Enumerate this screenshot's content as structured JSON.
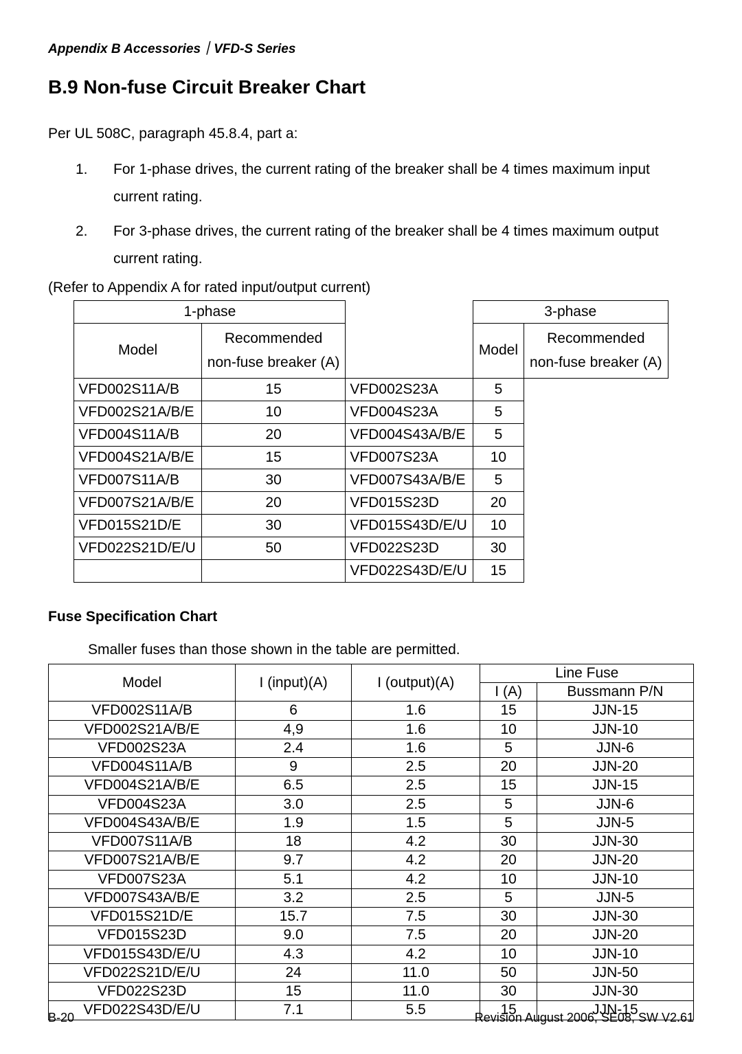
{
  "header": {
    "appendix": "Appendix B  Accessories｜VFD-S Series",
    "section_title": "B.9 Non-fuse Circuit Breaker Chart"
  },
  "intro": {
    "lead": "Per UL 508C, paragraph 45.8.4, part a:",
    "items": [
      {
        "n": "1.",
        "text": "For 1-phase drives, the current rating of the breaker shall be 4 times maximum input current rating."
      },
      {
        "n": "2.",
        "text": "For 3-phase drives, the current rating of the breaker shall be 4 times maximum output current rating."
      }
    ],
    "refer": "(Refer to Appendix A for rated input/output current)"
  },
  "breaker_table": {
    "phase1_label": "1-phase",
    "phase3_label": "3-phase",
    "model_label": "Model",
    "rec_label_l1": "Recommended",
    "rec_label_l2": "non-fuse breaker (A)",
    "phase1_rows": [
      {
        "model": "VFD002S11A/B",
        "val": "15"
      },
      {
        "model": "VFD002S21A/B/E",
        "val": "10"
      },
      {
        "model": "VFD004S11A/B",
        "val": "20"
      },
      {
        "model": "VFD004S21A/B/E",
        "val": "15"
      },
      {
        "model": "VFD007S11A/B",
        "val": "30"
      },
      {
        "model": "VFD007S21A/B/E",
        "val": "20"
      },
      {
        "model": "VFD015S21D/E",
        "val": "30"
      },
      {
        "model": "VFD022S21D/E/U",
        "val": "50"
      },
      {
        "model": "",
        "val": ""
      }
    ],
    "phase3_rows": [
      {
        "model": "VFD002S23A",
        "val": "5"
      },
      {
        "model": "VFD004S23A",
        "val": "5"
      },
      {
        "model": "VFD004S43A/B/E",
        "val": "5"
      },
      {
        "model": "VFD007S23A",
        "val": "10"
      },
      {
        "model": "VFD007S43A/B/E",
        "val": "5"
      },
      {
        "model": "VFD015S23D",
        "val": "20"
      },
      {
        "model": "VFD015S43D/E/U",
        "val": "10"
      },
      {
        "model": "VFD022S23D",
        "val": "30"
      },
      {
        "model": "VFD022S43D/E/U",
        "val": "15"
      }
    ]
  },
  "fuse": {
    "title": "Fuse Specification Chart",
    "note": "Smaller fuses than those shown in the table are permitted.",
    "cols": {
      "model": "Model",
      "iin": "I (input)(A)",
      "iout": "I (output)(A)",
      "line_fuse": "Line Fuse",
      "ia": "I (A)",
      "buss": "Bussmann P/N"
    },
    "rows": [
      {
        "m": "VFD002S11A/B",
        "iin": "6",
        "iout": "1.6",
        "ia": "15",
        "b": "JJN-15"
      },
      {
        "m": "VFD002S21A/B/E",
        "iin": "4,9",
        "iout": "1.6",
        "ia": "10",
        "b": "JJN-10"
      },
      {
        "m": "VFD002S23A",
        "iin": "2.4",
        "iout": "1.6",
        "ia": "5",
        "b": "JJN-6"
      },
      {
        "m": "VFD004S11A/B",
        "iin": "9",
        "iout": "2.5",
        "ia": "20",
        "b": "JJN-20"
      },
      {
        "m": "VFD004S21A/B/E",
        "iin": "6.5",
        "iout": "2.5",
        "ia": "15",
        "b": "JJN-15"
      },
      {
        "m": "VFD004S23A",
        "iin": "3.0",
        "iout": "2.5",
        "ia": "5",
        "b": "JJN-6"
      },
      {
        "m": "VFD004S43A/B/E",
        "iin": "1.9",
        "iout": "1.5",
        "ia": "5",
        "b": "JJN-5"
      },
      {
        "m": "VFD007S11A/B",
        "iin": "18",
        "iout": "4.2",
        "ia": "30",
        "b": "JJN-30"
      },
      {
        "m": "VFD007S21A/B/E",
        "iin": "9.7",
        "iout": "4.2",
        "ia": "20",
        "b": "JJN-20"
      },
      {
        "m": "VFD007S23A",
        "iin": "5.1",
        "iout": "4.2",
        "ia": "10",
        "b": "JJN-10"
      },
      {
        "m": "VFD007S43A/B/E",
        "iin": "3.2",
        "iout": "2.5",
        "ia": "5",
        "b": "JJN-5"
      },
      {
        "m": "VFD015S21D/E",
        "iin": "15.7",
        "iout": "7.5",
        "ia": "30",
        "b": "JJN-30"
      },
      {
        "m": "VFD015S23D",
        "iin": "9.0",
        "iout": "7.5",
        "ia": "20",
        "b": "JJN-20"
      },
      {
        "m": "VFD015S43D/E/U",
        "iin": "4.3",
        "iout": "4.2",
        "ia": "10",
        "b": "JJN-10"
      },
      {
        "m": "VFD022S21D/E/U",
        "iin": "24",
        "iout": "11.0",
        "ia": "50",
        "b": "JJN-50"
      },
      {
        "m": "VFD022S23D",
        "iin": "15",
        "iout": "11.0",
        "ia": "30",
        "b": "JJN-30"
      },
      {
        "m": "VFD022S43D/E/U",
        "iin": "7.1",
        "iout": "5.5",
        "ia": "15",
        "b": "JJN-15"
      }
    ]
  },
  "footer": {
    "left": "B-20",
    "right": "Revision August 2006, SE08, SW V2.61"
  }
}
